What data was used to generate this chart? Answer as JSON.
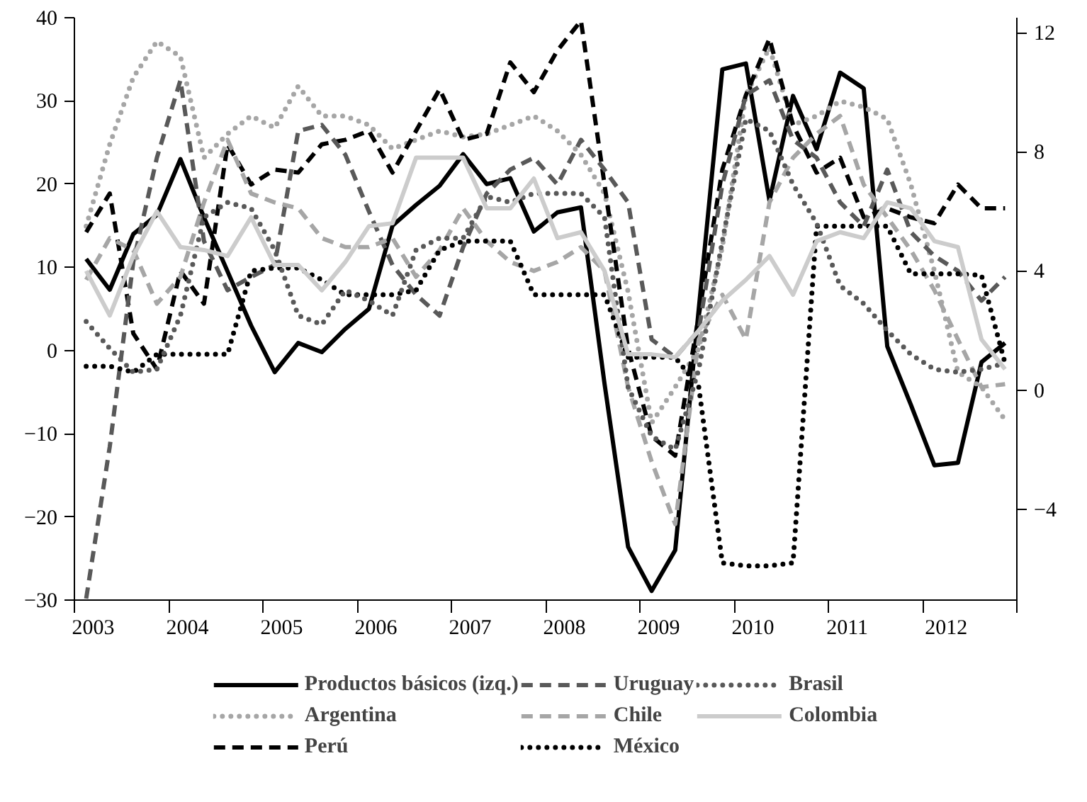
{
  "chart_data": {
    "type": "line",
    "x": [
      2003.125,
      2003.375,
      2003.625,
      2003.875,
      2004.125,
      2004.375,
      2004.625,
      2004.875,
      2005.125,
      2005.375,
      2005.625,
      2005.875,
      2006.125,
      2006.375,
      2006.625,
      2006.875,
      2007.125,
      2007.375,
      2007.625,
      2007.875,
      2008.125,
      2008.375,
      2008.625,
      2008.875,
      2009.125,
      2009.375,
      2009.625,
      2009.875,
      2010.125,
      2010.375,
      2010.625,
      2010.875,
      2011.125,
      2011.375,
      2011.625,
      2011.875,
      2012.125,
      2012.375,
      2012.625,
      2012.875
    ],
    "xlim": [
      2003,
      2013
    ],
    "xticks": [
      {
        "value": 2003,
        "label": null
      },
      {
        "value": 2004,
        "label": null
      },
      {
        "value": 2005,
        "label": null
      },
      {
        "value": 2006,
        "label": null
      },
      {
        "value": 2007,
        "label": null
      },
      {
        "value": 2008,
        "label": null
      },
      {
        "value": 2009,
        "label": null
      },
      {
        "value": 2010,
        "label": null
      },
      {
        "value": 2011,
        "label": null
      },
      {
        "value": 2012,
        "label": null
      },
      {
        "value": 2013,
        "label": null
      },
      {
        "value": 2003.2,
        "label": "2003"
      },
      {
        "value": 2004.2,
        "label": "2004"
      },
      {
        "value": 2005.2,
        "label": "2005"
      },
      {
        "value": 2006.2,
        "label": "2006"
      },
      {
        "value": 2007.2,
        "label": "2007"
      },
      {
        "value": 2008.2,
        "label": "2008"
      },
      {
        "value": 2009.2,
        "label": "2009"
      },
      {
        "value": 2010.2,
        "label": "2010"
      },
      {
        "value": 2011.2,
        "label": "2011"
      },
      {
        "value": 2012.25,
        "label": "2012"
      }
    ],
    "ylim": [
      -30,
      40
    ],
    "yticks": [
      {
        "value": -30,
        "label": "−30"
      },
      {
        "value": -20,
        "label": "−20"
      },
      {
        "value": -10,
        "label": "−10"
      },
      0,
      10,
      20,
      30,
      40
    ],
    "y2lim": [
      -7.05,
      12.5
    ],
    "y2ticks": [
      {
        "value": -4,
        "label": "−4"
      },
      0,
      4,
      8,
      12
    ],
    "grid": false,
    "legend": "bottom",
    "series": [
      {
        "name": "Productos básicos (izq.)",
        "color": "#000000",
        "line_style": "solid",
        "values": [
          11,
          7.3,
          14,
          16.3,
          23,
          16,
          9.5,
          3,
          -2.6,
          0.9,
          -0.2,
          2.6,
          5,
          15,
          17.5,
          19.8,
          23.6,
          20,
          20.7,
          14.3,
          16.6,
          17.2,
          -4,
          -23.6,
          -28.9,
          -24,
          5,
          33.8,
          34.5,
          18,
          30.6,
          24.2,
          33.4,
          31.5,
          0.5,
          -6.5,
          -13.8,
          -13.5,
          -1.4,
          0.9
        ]
      },
      {
        "name": "Argentina",
        "color": "#a6a6a6",
        "line_style": "dotted",
        "axis": "y2",
        "values": [
          5.5,
          8.25,
          10.5,
          11.7,
          11.2,
          7.8,
          8.6,
          9.2,
          8.8,
          10.2,
          9.2,
          9.2,
          8.9,
          8.1,
          8.4,
          8.7,
          8.5,
          8.6,
          8.9,
          9.2,
          8.7,
          7.9,
          6.6,
          3.3,
          -1.1,
          0.1,
          1.4,
          4.8,
          9.9,
          11.5,
          8.9,
          9.2,
          9.7,
          9.5,
          9.1,
          6.9,
          4.0,
          0.6,
          0.1,
          -1.0
        ]
      },
      {
        "name": "Perú",
        "color": "#000000",
        "line_style": "dashed",
        "axis": "y2",
        "values": [
          5.3,
          6.6,
          1.9,
          0.7,
          4.0,
          2.9,
          8.25,
          6.9,
          7.4,
          7.3,
          8.25,
          8.4,
          8.7,
          7.3,
          8.7,
          10.1,
          8.4,
          8.6,
          11.0,
          10.0,
          11.4,
          12.4,
          6.9,
          1.4,
          -1.55,
          -2.2,
          2.5,
          7.4,
          9.9,
          11.8,
          8.9,
          7.3,
          7.8,
          5.8,
          6.1,
          5.8,
          5.6,
          6.9,
          6.1,
          6.1
        ]
      },
      {
        "name": "Uruguay",
        "color": "#595959",
        "line_style": "dashed",
        "axis": "y2",
        "values": [
          -7.0,
          -1.9,
          4.3,
          7.8,
          10.4,
          5.0,
          3.35,
          3.8,
          4.2,
          8.7,
          8.9,
          7.9,
          6.0,
          4.2,
          3.2,
          2.5,
          4.8,
          6.6,
          7.4,
          7.8,
          6.9,
          8.4,
          7.4,
          6.3,
          1.7,
          1.1,
          2.0,
          6.9,
          9.9,
          10.4,
          8.4,
          7.8,
          6.3,
          5.5,
          7.4,
          5.3,
          4.5,
          4.0,
          3.0,
          3.8
        ]
      },
      {
        "name": "Chile",
        "color": "#a6a6a6",
        "line_style": "dashed",
        "axis": "y2",
        "values": [
          3.7,
          5.1,
          4.7,
          2.9,
          3.8,
          6.3,
          8.4,
          6.6,
          6.3,
          6.1,
          5.1,
          4.8,
          4.8,
          5.1,
          3.8,
          4.7,
          6.1,
          5.0,
          4.3,
          4.0,
          4.3,
          4.8,
          4.0,
          0.1,
          -2.4,
          -4.5,
          1.7,
          3.2,
          1.7,
          6.3,
          7.8,
          8.6,
          9.2,
          6.9,
          5.8,
          4.7,
          3.35,
          1.7,
          0.1,
          0.2
        ]
      },
      {
        "name": "México",
        "color": "#000000",
        "line_style": "dotted",
        "axis": "y2",
        "values": [
          0.8,
          0.8,
          0.6,
          1.2,
          1.2,
          1.2,
          1.2,
          4.0,
          4.1,
          4.1,
          3.7,
          3.2,
          3.2,
          3.2,
          3.35,
          4.7,
          5.0,
          5.0,
          5.0,
          3.2,
          3.2,
          3.2,
          3.2,
          1.1,
          1.1,
          1.1,
          0.1,
          -5.8,
          -5.9,
          -5.9,
          -5.8,
          5.5,
          5.5,
          5.5,
          5.5,
          3.9,
          3.9,
          3.9,
          3.85,
          0.9
        ]
      },
      {
        "name": "Brasil",
        "color": "#595959",
        "line_style": "dotted",
        "axis": "y2",
        "values": [
          2.3,
          1.4,
          0.6,
          0.7,
          2.5,
          5.8,
          6.3,
          6.1,
          4.7,
          2.5,
          2.2,
          3.35,
          3.0,
          2.5,
          4.7,
          5.1,
          5.1,
          6.5,
          6.3,
          6.6,
          6.6,
          6.6,
          5.8,
          0.1,
          -1.55,
          -2.0,
          0.7,
          5.0,
          9.1,
          8.7,
          6.9,
          5.6,
          3.5,
          2.9,
          2.0,
          1.2,
          0.7,
          0.6,
          0.7,
          0.9
        ]
      },
      {
        "name": "Colombia",
        "color": "#cccccc",
        "line_style": "solid",
        "axis": "y2",
        "values": [
          4.0,
          2.5,
          4.5,
          6.0,
          4.8,
          4.7,
          4.5,
          5.8,
          4.2,
          4.2,
          3.35,
          4.3,
          5.5,
          5.6,
          7.8,
          7.8,
          7.8,
          6.1,
          6.1,
          7.1,
          5.1,
          5.3,
          4.0,
          1.2,
          1.2,
          1.1,
          2.0,
          3.0,
          3.7,
          4.5,
          3.2,
          5.0,
          5.3,
          5.1,
          6.3,
          6.1,
          5.0,
          4.8,
          1.7,
          0.7
        ]
      }
    ]
  }
}
